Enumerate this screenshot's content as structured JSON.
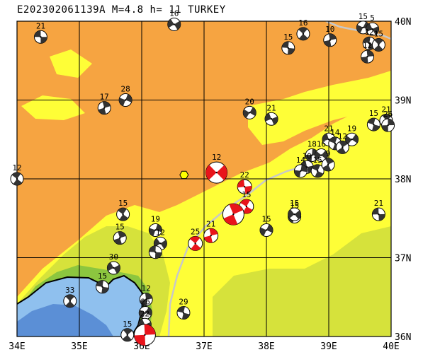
{
  "header": {
    "title": "E202302061139A M=4.8 h= 11 TURKEY"
  },
  "map": {
    "lon_range": [
      34,
      40
    ],
    "lat_range": [
      36,
      40
    ],
    "lon_labels": [
      "34E",
      "35E",
      "36E",
      "37E",
      "38E",
      "39E",
      "40E"
    ],
    "lat_labels": [
      "40N",
      "39N",
      "38N",
      "37N",
      "36N"
    ],
    "colors": {
      "land_high": "#f6a441",
      "land_mid": "#fefe37",
      "land_low": "#d6e23b",
      "land_lowest": "#8cc63f",
      "sea_shallow": "#8fc0ee",
      "sea_deep": "#5b8fd6",
      "fault": "#c8c8c8",
      "focal_highlight": "#e8141b",
      "focal_normal": "#333333",
      "epicenter_marker": "#ffff00"
    },
    "events": [
      {
        "lon": 34.38,
        "lat": 39.8,
        "depth": "21",
        "highlight": false
      },
      {
        "lon": 34.0,
        "lat": 38.0,
        "depth": "12",
        "highlight": false
      },
      {
        "lon": 35.4,
        "lat": 38.9,
        "depth": "17",
        "highlight": false
      },
      {
        "lon": 35.74,
        "lat": 39.0,
        "depth": "28",
        "highlight": false
      },
      {
        "lon": 36.52,
        "lat": 39.96,
        "depth": "16",
        "highlight": false
      },
      {
        "lon": 38.35,
        "lat": 39.66,
        "depth": "15",
        "highlight": false
      },
      {
        "lon": 38.59,
        "lat": 39.84,
        "depth": "16",
        "highlight": false
      },
      {
        "lon": 39.02,
        "lat": 39.76,
        "depth": "10",
        "highlight": false
      },
      {
        "lon": 39.55,
        "lat": 39.92,
        "depth": "15",
        "highlight": false
      },
      {
        "lon": 39.7,
        "lat": 39.9,
        "depth": "5",
        "highlight": false
      },
      {
        "lon": 39.65,
        "lat": 39.72,
        "depth": "12",
        "highlight": false
      },
      {
        "lon": 39.8,
        "lat": 39.7,
        "depth": "15",
        "highlight": false
      },
      {
        "lon": 39.62,
        "lat": 39.55,
        "depth": "12",
        "highlight": false
      },
      {
        "lon": 37.73,
        "lat": 38.84,
        "depth": "20",
        "highlight": false
      },
      {
        "lon": 38.08,
        "lat": 38.76,
        "depth": "21",
        "highlight": false
      },
      {
        "lon": 39.72,
        "lat": 38.69,
        "depth": "15",
        "highlight": false
      },
      {
        "lon": 39.92,
        "lat": 38.74,
        "depth": "21",
        "highlight": false
      },
      {
        "lon": 39.95,
        "lat": 38.68,
        "depth": "26",
        "highlight": false
      },
      {
        "lon": 39.37,
        "lat": 38.5,
        "depth": "19",
        "highlight": false
      },
      {
        "lon": 39.0,
        "lat": 38.5,
        "depth": "21",
        "highlight": false
      },
      {
        "lon": 39.1,
        "lat": 38.45,
        "depth": "14",
        "highlight": false
      },
      {
        "lon": 39.22,
        "lat": 38.4,
        "depth": "12",
        "highlight": false
      },
      {
        "lon": 38.73,
        "lat": 38.3,
        "depth": "18",
        "highlight": false
      },
      {
        "lon": 38.88,
        "lat": 38.3,
        "depth": "16",
        "highlight": false
      },
      {
        "lon": 38.65,
        "lat": 38.15,
        "depth": "10",
        "highlight": false
      },
      {
        "lon": 38.82,
        "lat": 38.1,
        "depth": "15",
        "highlight": false
      },
      {
        "lon": 38.99,
        "lat": 38.18,
        "depth": "9",
        "highlight": false
      },
      {
        "lon": 38.55,
        "lat": 38.1,
        "depth": "14",
        "highlight": false
      },
      {
        "lon": 37.2,
        "lat": 38.08,
        "depth": "12",
        "highlight": true
      },
      {
        "lon": 37.65,
        "lat": 37.9,
        "depth": "22",
        "highlight": true
      },
      {
        "lon": 37.68,
        "lat": 37.65,
        "depth": "15",
        "highlight": true
      },
      {
        "lon": 37.47,
        "lat": 37.55,
        "depth": "",
        "highlight": true
      },
      {
        "lon": 38.45,
        "lat": 37.52,
        "depth": "15",
        "highlight": false
      },
      {
        "lon": 38.45,
        "lat": 37.55,
        "depth": "15",
        "highlight": false
      },
      {
        "lon": 39.8,
        "lat": 37.55,
        "depth": "21",
        "highlight": false
      },
      {
        "lon": 35.7,
        "lat": 37.55,
        "depth": "15",
        "highlight": false
      },
      {
        "lon": 35.65,
        "lat": 37.25,
        "depth": "15",
        "highlight": false
      },
      {
        "lon": 36.22,
        "lat": 37.35,
        "depth": "19",
        "highlight": false
      },
      {
        "lon": 36.3,
        "lat": 37.18,
        "depth": "12",
        "highlight": false
      },
      {
        "lon": 36.22,
        "lat": 37.07,
        "depth": "",
        "highlight": false
      },
      {
        "lon": 36.86,
        "lat": 37.18,
        "depth": "25",
        "highlight": true
      },
      {
        "lon": 37.11,
        "lat": 37.28,
        "depth": "21",
        "highlight": true
      },
      {
        "lon": 38.0,
        "lat": 37.35,
        "depth": "15",
        "highlight": false
      },
      {
        "lon": 35.55,
        "lat": 36.87,
        "depth": "30",
        "highlight": false
      },
      {
        "lon": 35.37,
        "lat": 36.63,
        "depth": "15",
        "highlight": false
      },
      {
        "lon": 34.85,
        "lat": 36.45,
        "depth": "33",
        "highlight": false
      },
      {
        "lon": 36.07,
        "lat": 36.47,
        "depth": "12",
        "highlight": false
      },
      {
        "lon": 36.06,
        "lat": 36.3,
        "depth": "26",
        "highlight": false
      },
      {
        "lon": 36.05,
        "lat": 36.15,
        "depth": "22",
        "highlight": false
      },
      {
        "lon": 36.67,
        "lat": 36.3,
        "depth": "29",
        "highlight": false
      },
      {
        "lon": 35.77,
        "lat": 36.02,
        "depth": "15",
        "highlight": false
      },
      {
        "lon": 36.05,
        "lat": 36.02,
        "depth": "",
        "highlight": true
      }
    ],
    "epicenter": {
      "lon": 36.68,
      "lat": 38.05
    }
  }
}
